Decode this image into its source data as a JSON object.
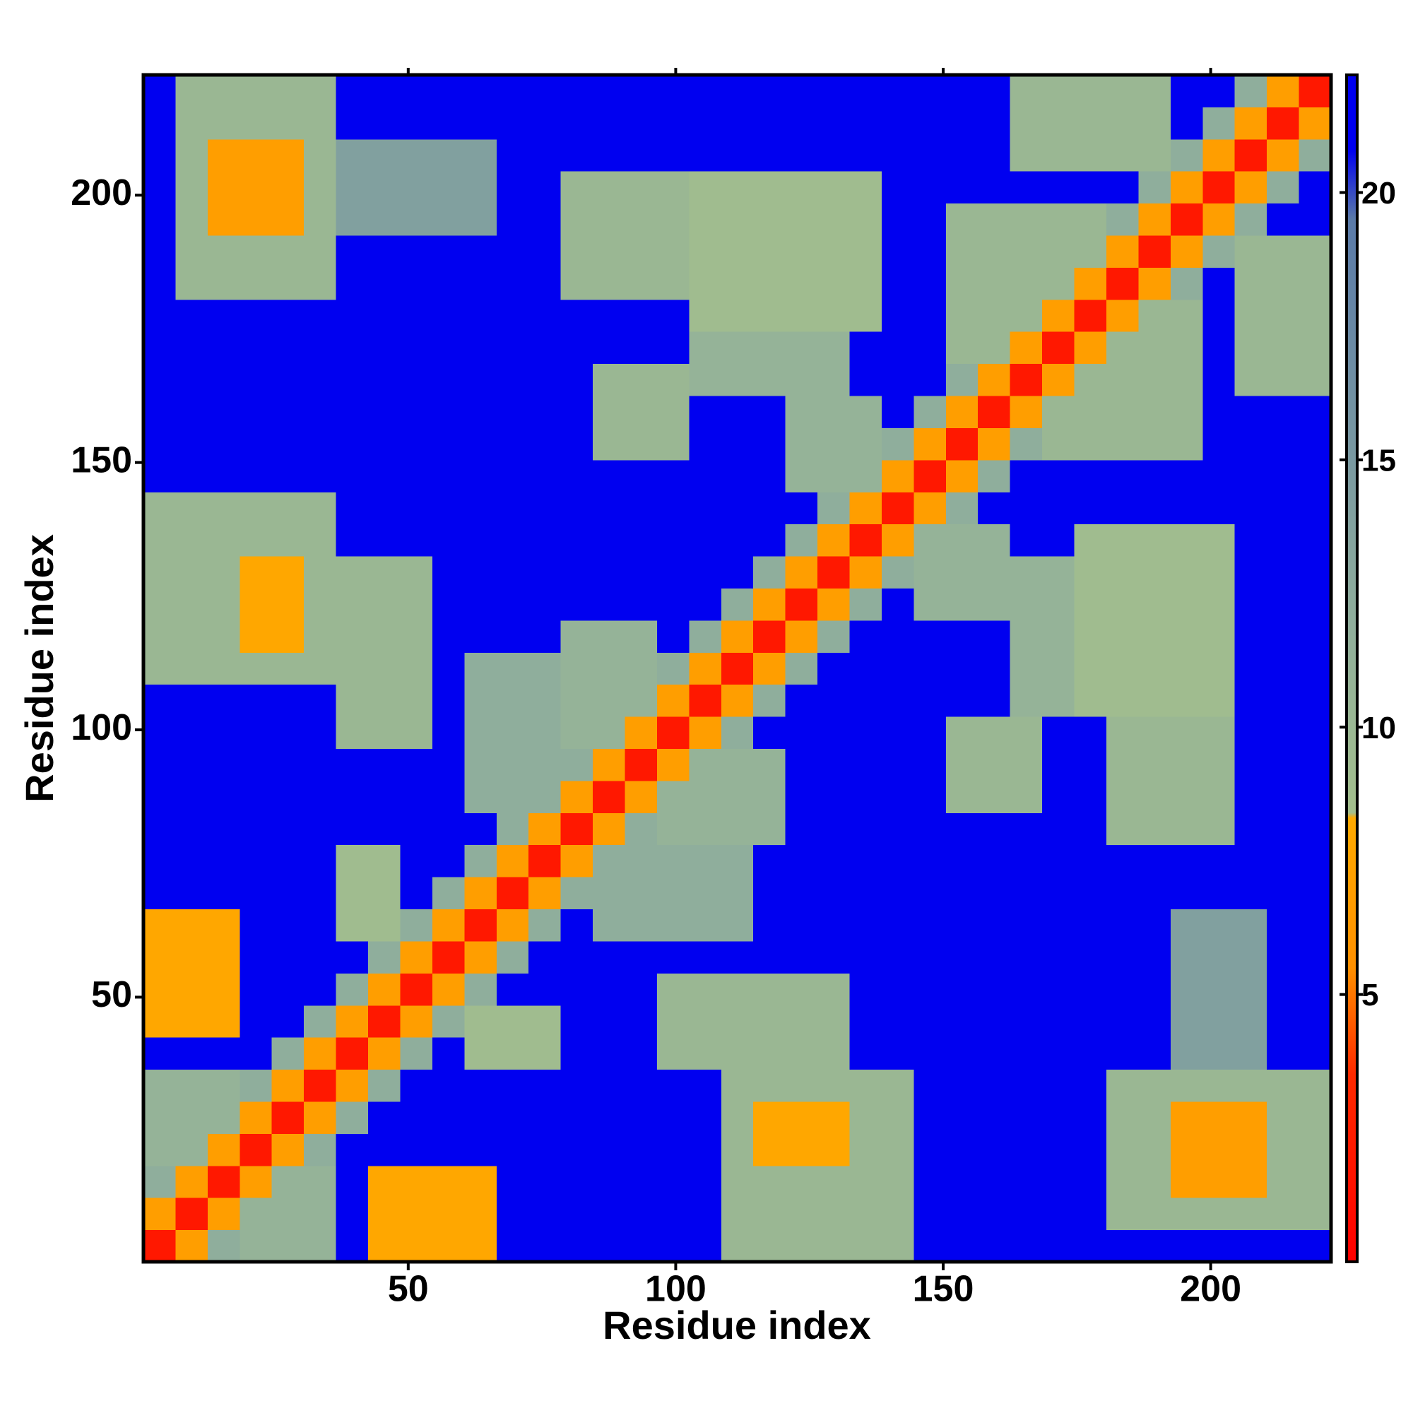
{
  "chart_data": {
    "type": "heatmap",
    "xlabel": "Residue index",
    "ylabel": "Residue index",
    "xlim": [
      0.5,
      222.5
    ],
    "ylim": [
      0.5,
      222.5
    ],
    "xticks": [
      50,
      100,
      150,
      200
    ],
    "yticks": [
      50,
      100,
      150,
      200
    ],
    "x_bins": [
      0.5,
      6.5,
      12.5,
      18.5,
      24.5,
      30.5,
      36.5,
      42.5,
      48.5,
      54.5,
      60.5,
      66.5,
      72.5,
      78.5,
      84.5,
      90.5,
      96.5,
      102.5,
      108.5,
      114.5,
      120.5,
      126.5,
      132.5,
      138.5,
      144.5,
      150.5,
      156.5,
      162.5,
      168.5,
      174.5,
      180.5,
      186.5,
      192.5,
      198.5,
      204.5,
      210.5,
      216.5,
      222.5
    ],
    "y_bins": [
      0.5,
      6.5,
      12.5,
      18.5,
      24.5,
      30.5,
      36.5,
      42.5,
      48.5,
      54.5,
      60.5,
      66.5,
      72.5,
      78.5,
      84.5,
      90.5,
      96.5,
      102.5,
      108.5,
      114.5,
      120.5,
      126.5,
      132.5,
      138.5,
      144.5,
      150.5,
      156.5,
      162.5,
      168.5,
      174.5,
      180.5,
      186.5,
      192.5,
      198.5,
      204.5,
      210.5,
      216.5,
      222.5
    ],
    "zlim": [
      0,
      22.2
    ],
    "zticks": [
      5,
      10,
      15,
      20
    ],
    "colorscale": [
      {
        "value": 0,
        "color": "#ff0000"
      },
      {
        "value": 3.5,
        "color": "#ff2a00"
      },
      {
        "value": 5.5,
        "color": "#ff9000"
      },
      {
        "value": 8.3,
        "color": "#ffaa00"
      },
      {
        "value": 8.4,
        "color": "#a3bf8c"
      },
      {
        "value": 12,
        "color": "#8fae9c"
      },
      {
        "value": 19.5,
        "color": "#5a7aa8"
      },
      {
        "value": 20.8,
        "color": "#0000f0"
      },
      {
        "value": 22.2,
        "color": "#0000f0"
      }
    ],
    "z": [
      [
        2,
        7,
        12,
        11,
        11,
        11,
        22,
        8,
        8,
        8,
        8,
        22,
        22,
        22,
        22,
        22,
        22,
        22,
        10,
        10,
        10,
        10,
        10,
        10,
        22,
        22,
        22,
        22,
        22,
        22,
        22,
        22,
        22,
        22,
        22,
        22,
        22
      ],
      [
        7,
        2,
        7,
        11,
        11,
        11,
        22,
        8,
        8,
        8,
        8,
        22,
        22,
        22,
        22,
        22,
        22,
        22,
        10,
        10,
        10,
        10,
        10,
        10,
        22,
        22,
        22,
        22,
        22,
        22,
        10,
        10,
        10,
        10,
        10,
        10,
        10
      ],
      [
        12,
        7,
        2,
        7,
        11,
        11,
        22,
        8,
        8,
        8,
        8,
        22,
        22,
        22,
        22,
        22,
        22,
        22,
        10,
        10,
        10,
        10,
        10,
        10,
        22,
        22,
        22,
        22,
        22,
        22,
        10,
        10,
        7,
        7,
        7,
        10,
        10
      ],
      [
        11,
        11,
        7,
        2,
        7,
        12,
        22,
        22,
        22,
        22,
        22,
        22,
        22,
        22,
        22,
        22,
        22,
        22,
        10,
        8,
        8,
        8,
        10,
        10,
        22,
        22,
        22,
        22,
        22,
        22,
        10,
        10,
        7,
        7,
        7,
        10,
        10
      ],
      [
        11,
        11,
        11,
        7,
        2,
        7,
        12,
        22,
        22,
        22,
        22,
        22,
        22,
        22,
        22,
        22,
        22,
        22,
        10,
        8,
        8,
        8,
        10,
        10,
        22,
        22,
        22,
        22,
        22,
        22,
        10,
        10,
        7,
        7,
        7,
        10,
        10
      ],
      [
        11,
        11,
        11,
        12,
        7,
        2,
        7,
        12,
        22,
        22,
        22,
        22,
        22,
        22,
        22,
        22,
        22,
        22,
        10,
        10,
        10,
        10,
        10,
        10,
        22,
        22,
        22,
        22,
        22,
        22,
        10,
        10,
        10,
        10,
        10,
        10,
        10
      ],
      [
        22,
        22,
        22,
        22,
        12,
        7,
        2,
        7,
        12,
        22,
        9,
        9,
        9,
        22,
        22,
        22,
        10,
        10,
        10,
        10,
        10,
        10,
        22,
        22,
        22,
        22,
        22,
        22,
        22,
        22,
        22,
        22,
        14,
        14,
        14,
        22,
        22
      ],
      [
        8,
        8,
        8,
        22,
        22,
        12,
        7,
        2,
        7,
        12,
        9,
        9,
        9,
        22,
        22,
        22,
        10,
        10,
        10,
        10,
        10,
        10,
        22,
        22,
        22,
        22,
        22,
        22,
        22,
        22,
        22,
        22,
        14,
        14,
        14,
        22,
        22
      ],
      [
        8,
        8,
        8,
        22,
        22,
        22,
        12,
        7,
        2,
        7,
        12,
        22,
        22,
        22,
        22,
        22,
        10,
        10,
        10,
        10,
        10,
        10,
        22,
        22,
        22,
        22,
        22,
        22,
        22,
        22,
        22,
        22,
        14,
        14,
        14,
        22,
        22
      ],
      [
        8,
        8,
        8,
        22,
        22,
        22,
        22,
        12,
        7,
        2,
        7,
        12,
        22,
        22,
        22,
        22,
        22,
        22,
        22,
        22,
        22,
        22,
        22,
        22,
        22,
        22,
        22,
        22,
        22,
        22,
        22,
        22,
        14,
        14,
        14,
        22,
        22
      ],
      [
        8,
        8,
        8,
        22,
        22,
        22,
        9,
        9,
        12,
        7,
        2,
        7,
        12,
        22,
        12,
        12,
        12,
        12,
        12,
        22,
        22,
        22,
        22,
        22,
        22,
        22,
        22,
        22,
        22,
        22,
        22,
        22,
        14,
        14,
        14,
        22,
        22
      ],
      [
        22,
        22,
        22,
        22,
        22,
        22,
        9,
        9,
        22,
        12,
        7,
        2,
        7,
        12,
        12,
        12,
        12,
        12,
        12,
        22,
        22,
        22,
        22,
        22,
        22,
        22,
        22,
        22,
        22,
        22,
        22,
        22,
        22,
        22,
        22,
        22,
        22
      ],
      [
        22,
        22,
        22,
        22,
        22,
        22,
        9,
        9,
        22,
        22,
        12,
        7,
        2,
        7,
        12,
        12,
        12,
        12,
        12,
        22,
        22,
        22,
        22,
        22,
        22,
        22,
        22,
        22,
        22,
        22,
        22,
        22,
        22,
        22,
        22,
        22,
        22
      ],
      [
        22,
        22,
        22,
        22,
        22,
        22,
        22,
        22,
        22,
        22,
        22,
        12,
        7,
        2,
        7,
        12,
        11,
        11,
        11,
        11,
        22,
        22,
        22,
        22,
        22,
        22,
        22,
        22,
        22,
        22,
        10,
        10,
        10,
        10,
        22,
        22,
        22
      ],
      [
        22,
        22,
        22,
        22,
        22,
        22,
        22,
        22,
        22,
        22,
        12,
        12,
        12,
        7,
        2,
        7,
        11,
        11,
        11,
        11,
        22,
        22,
        22,
        22,
        22,
        10,
        10,
        10,
        22,
        22,
        10,
        10,
        10,
        10,
        22,
        22,
        22
      ],
      [
        22,
        22,
        22,
        22,
        22,
        22,
        22,
        22,
        22,
        22,
        12,
        12,
        12,
        12,
        7,
        2,
        7,
        11,
        11,
        11,
        22,
        22,
        22,
        22,
        22,
        10,
        10,
        10,
        22,
        22,
        10,
        10,
        10,
        10,
        22,
        22,
        22
      ],
      [
        22,
        22,
        22,
        22,
        22,
        22,
        10,
        10,
        10,
        22,
        12,
        12,
        12,
        11,
        11,
        7,
        2,
        7,
        12,
        22,
        22,
        22,
        22,
        22,
        22,
        10,
        10,
        10,
        22,
        22,
        10,
        10,
        10,
        10,
        22,
        22,
        22
      ],
      [
        22,
        22,
        22,
        22,
        22,
        22,
        10,
        10,
        10,
        22,
        12,
        12,
        12,
        11,
        11,
        11,
        7,
        2,
        7,
        12,
        22,
        22,
        22,
        22,
        22,
        22,
        22,
        11,
        11,
        9,
        9,
        9,
        9,
        9,
        22,
        22,
        22
      ],
      [
        10,
        10,
        10,
        10,
        10,
        10,
        10,
        10,
        10,
        22,
        12,
        12,
        12,
        11,
        11,
        11,
        12,
        7,
        2,
        7,
        12,
        22,
        22,
        22,
        22,
        22,
        22,
        11,
        11,
        9,
        9,
        9,
        9,
        9,
        22,
        22,
        22
      ],
      [
        10,
        10,
        10,
        8,
        8,
        10,
        10,
        10,
        10,
        22,
        22,
        22,
        22,
        11,
        11,
        11,
        22,
        12,
        7,
        2,
        7,
        12,
        22,
        22,
        22,
        22,
        22,
        11,
        11,
        9,
        9,
        9,
        9,
        9,
        22,
        22,
        22
      ],
      [
        10,
        10,
        10,
        8,
        8,
        10,
        10,
        10,
        10,
        22,
        22,
        22,
        22,
        22,
        22,
        22,
        22,
        22,
        12,
        7,
        2,
        7,
        12,
        22,
        11,
        11,
        11,
        11,
        11,
        9,
        9,
        9,
        9,
        9,
        22,
        22,
        22
      ],
      [
        10,
        10,
        10,
        8,
        8,
        10,
        10,
        10,
        10,
        22,
        22,
        22,
        22,
        22,
        22,
        22,
        22,
        22,
        22,
        12,
        7,
        2,
        7,
        12,
        11,
        11,
        11,
        11,
        11,
        9,
        9,
        9,
        9,
        9,
        22,
        22,
        22
      ],
      [
        10,
        10,
        10,
        10,
        10,
        10,
        22,
        22,
        22,
        22,
        22,
        22,
        22,
        22,
        22,
        22,
        22,
        22,
        22,
        22,
        12,
        7,
        2,
        7,
        11,
        11,
        11,
        22,
        22,
        9,
        9,
        9,
        9,
        9,
        22,
        22,
        22
      ],
      [
        10,
        10,
        10,
        10,
        10,
        10,
        22,
        22,
        22,
        22,
        22,
        22,
        22,
        22,
        22,
        22,
        22,
        22,
        22,
        22,
        22,
        12,
        7,
        2,
        7,
        12,
        22,
        22,
        22,
        22,
        22,
        22,
        22,
        22,
        22,
        22,
        22
      ],
      [
        22,
        22,
        22,
        22,
        22,
        22,
        22,
        22,
        22,
        22,
        22,
        22,
        22,
        22,
        22,
        22,
        22,
        22,
        22,
        22,
        11,
        11,
        11,
        7,
        2,
        7,
        12,
        22,
        22,
        22,
        22,
        22,
        22,
        22,
        22,
        22,
        22
      ],
      [
        22,
        22,
        22,
        22,
        22,
        22,
        22,
        22,
        22,
        22,
        22,
        22,
        22,
        22,
        10,
        10,
        10,
        22,
        22,
        22,
        11,
        11,
        11,
        12,
        7,
        2,
        7,
        12,
        10,
        10,
        10,
        10,
        10,
        22,
        22,
        22,
        22
      ],
      [
        22,
        22,
        22,
        22,
        22,
        22,
        22,
        22,
        22,
        22,
        22,
        22,
        22,
        22,
        10,
        10,
        10,
        22,
        22,
        22,
        11,
        11,
        11,
        22,
        12,
        7,
        2,
        7,
        10,
        10,
        10,
        10,
        10,
        22,
        22,
        22,
        22
      ],
      [
        22,
        22,
        22,
        22,
        22,
        22,
        22,
        22,
        22,
        22,
        22,
        22,
        22,
        22,
        10,
        10,
        10,
        11,
        11,
        11,
        11,
        11,
        22,
        22,
        22,
        12,
        7,
        2,
        7,
        10,
        10,
        10,
        10,
        22,
        10,
        10,
        10
      ],
      [
        22,
        22,
        22,
        22,
        22,
        22,
        22,
        22,
        22,
        22,
        22,
        22,
        22,
        22,
        22,
        22,
        22,
        11,
        11,
        11,
        11,
        11,
        22,
        22,
        22,
        10,
        10,
        7,
        2,
        7,
        10,
        10,
        10,
        22,
        10,
        10,
        10
      ],
      [
        22,
        22,
        22,
        22,
        22,
        22,
        22,
        22,
        22,
        22,
        22,
        22,
        22,
        22,
        22,
        22,
        22,
        9,
        9,
        9,
        9,
        9,
        9,
        22,
        22,
        10,
        10,
        10,
        7,
        2,
        7,
        10,
        10,
        22,
        10,
        10,
        10
      ],
      [
        22,
        10,
        10,
        10,
        10,
        10,
        22,
        22,
        22,
        22,
        22,
        22,
        22,
        10,
        10,
        10,
        10,
        9,
        9,
        9,
        9,
        9,
        9,
        22,
        22,
        10,
        10,
        10,
        10,
        7,
        2,
        7,
        12,
        22,
        10,
        10,
        10
      ],
      [
        22,
        10,
        10,
        10,
        10,
        10,
        22,
        22,
        22,
        22,
        22,
        22,
        22,
        10,
        10,
        10,
        10,
        9,
        9,
        9,
        9,
        9,
        9,
        22,
        22,
        10,
        10,
        10,
        10,
        10,
        7,
        2,
        7,
        12,
        10,
        10,
        10
      ],
      [
        22,
        10,
        7,
        7,
        7,
        10,
        14,
        14,
        14,
        14,
        14,
        22,
        22,
        10,
        10,
        10,
        10,
        9,
        9,
        9,
        9,
        9,
        9,
        22,
        22,
        10,
        10,
        10,
        10,
        10,
        12,
        7,
        2,
        7,
        12,
        22,
        22
      ],
      [
        22,
        10,
        7,
        7,
        7,
        10,
        14,
        14,
        14,
        14,
        14,
        22,
        22,
        10,
        10,
        10,
        10,
        9,
        9,
        9,
        9,
        9,
        9,
        22,
        22,
        22,
        22,
        22,
        22,
        22,
        22,
        12,
        7,
        2,
        7,
        12,
        22
      ],
      [
        22,
        10,
        7,
        7,
        7,
        10,
        14,
        14,
        14,
        14,
        14,
        22,
        22,
        22,
        22,
        22,
        22,
        22,
        22,
        22,
        22,
        22,
        22,
        22,
        22,
        22,
        22,
        10,
        10,
        10,
        10,
        10,
        12,
        7,
        2,
        7,
        12
      ],
      [
        22,
        10,
        10,
        10,
        10,
        10,
        22,
        22,
        22,
        22,
        22,
        22,
        22,
        22,
        22,
        22,
        22,
        22,
        22,
        22,
        22,
        22,
        22,
        22,
        22,
        22,
        22,
        10,
        10,
        10,
        10,
        10,
        22,
        12,
        7,
        2,
        7
      ],
      [
        22,
        10,
        10,
        10,
        10,
        10,
        22,
        22,
        22,
        22,
        22,
        22,
        22,
        22,
        22,
        22,
        22,
        22,
        22,
        22,
        22,
        22,
        22,
        22,
        22,
        22,
        22,
        10,
        10,
        10,
        10,
        10,
        22,
        22,
        12,
        7,
        2
      ]
    ]
  }
}
